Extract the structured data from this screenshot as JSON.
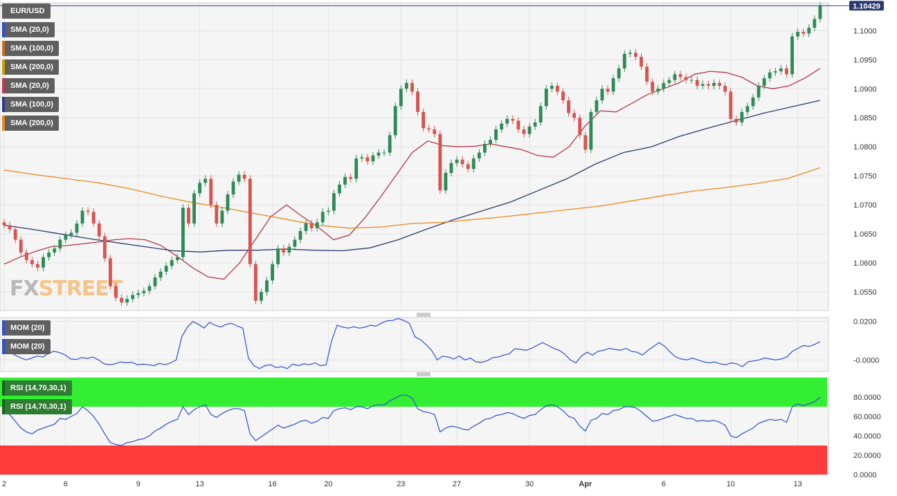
{
  "symbol": "EUR/USD",
  "last_price": "1.10429",
  "watermark": {
    "fx": "FX",
    "street": "STREET"
  },
  "legends": {
    "price": [
      {
        "label": "EUR/USD",
        "color": "#5f5f5f"
      },
      {
        "label": "SMA (20,0)",
        "color": "#2d4fd0"
      },
      {
        "label": "SMA (100,0)",
        "color": "#d2691e"
      },
      {
        "label": "SMA (200,0)",
        "color": "#c8a000"
      },
      {
        "label": "SMA (20,0)",
        "color": "#c0394b"
      },
      {
        "label": "SMA (100,0)",
        "color": "#2b3a8c"
      },
      {
        "label": "SMA (200,0)",
        "color": "#e8891f"
      }
    ],
    "mom": [
      {
        "label": "MOM (20)",
        "color": "#2d4fd0"
      },
      {
        "label": "MOM (20)",
        "color": "#2d4fd0"
      }
    ],
    "rsi": [
      {
        "label": "RSI (14,70,30,1)",
        "color": "#1b5e20"
      },
      {
        "label": "RSI (14,70,30,1)",
        "color": "#1b5e20"
      }
    ]
  },
  "colors": {
    "up": "#2e8b57",
    "down": "#d9534f",
    "sma20": "#b5364a",
    "sma100": "#2b3a6e",
    "sma200": "#e8891f",
    "mom": "#2d4fd0",
    "rsi": "#2d4fd0",
    "overbought": "#33ee33",
    "oversold": "#ff3b3b"
  },
  "chart_data": [
    {
      "type": "candlestick",
      "title": "EUR/USD",
      "x_ticks": [
        "2",
        "6",
        "9",
        "13",
        "16",
        "20",
        "23",
        "27",
        "30",
        "Apr",
        "6",
        "10",
        "13"
      ],
      "x_tick_index": [
        0,
        11,
        24,
        35,
        48,
        58,
        71,
        81,
        94,
        104,
        118,
        130,
        142
      ],
      "y_ticks": [
        "1.0550",
        "1.0600",
        "1.0650",
        "1.0700",
        "1.0750",
        "1.0800",
        "1.0850",
        "1.0900",
        "1.0950",
        "1.1000"
      ],
      "ylim": [
        1.0518,
        1.1048
      ],
      "last": 1.10429,
      "close": [
        1.0665,
        1.0658,
        1.064,
        1.0618,
        1.0605,
        1.0598,
        1.0592,
        1.061,
        1.0618,
        1.0625,
        1.064,
        1.0648,
        1.0652,
        1.0668,
        1.069,
        1.0688,
        1.0668,
        1.0646,
        1.0608,
        1.056,
        1.054,
        1.0532,
        1.0538,
        1.0545,
        1.0548,
        1.0552,
        1.056,
        1.0575,
        1.0585,
        1.0595,
        1.0605,
        1.061,
        1.0695,
        1.0668,
        1.072,
        1.0738,
        1.0745,
        1.07,
        1.0668,
        1.069,
        1.0718,
        1.074,
        1.0752,
        1.0745,
        1.0598,
        1.0535,
        1.055,
        1.057,
        1.0598,
        1.0625,
        1.0618,
        1.0628,
        1.064,
        1.0655,
        1.0668,
        1.066,
        1.067,
        1.0688,
        1.069,
        1.072,
        1.0735,
        1.0748,
        1.0745,
        1.078,
        1.0782,
        1.0775,
        1.0785,
        1.079,
        1.079,
        1.082,
        1.087,
        1.09,
        1.091,
        1.0895,
        1.086,
        1.0832,
        1.083,
        1.0822,
        1.0725,
        1.0755,
        1.0772,
        1.0778,
        1.077,
        1.0762,
        1.078,
        1.079,
        1.0805,
        1.0812,
        1.083,
        1.084,
        1.0848,
        1.0845,
        1.083,
        1.0822,
        1.0835,
        1.0842,
        1.087,
        1.09,
        1.0905,
        1.0895,
        1.088,
        1.0858,
        1.085,
        1.082,
        1.0795,
        1.086,
        1.088,
        1.09,
        1.0895,
        1.0918,
        1.0935,
        1.096,
        1.0962,
        1.0955,
        1.0938,
        1.0912,
        1.0895,
        1.09,
        1.091,
        1.0915,
        1.0925,
        1.092,
        1.0915,
        1.0915,
        1.0905,
        1.0908,
        1.0905,
        1.091,
        1.0905,
        1.0895,
        1.0848,
        1.0842,
        1.086,
        1.087,
        1.0885,
        1.0905,
        1.0918,
        1.0928,
        1.093,
        1.0935,
        1.0925,
        1.099,
        1.0998,
        1.0995,
        1.1005,
        1.102,
        1.10429
      ],
      "series": [
        {
          "name": "SMA (20,0)",
          "values": [
            1.0598,
            1.061,
            1.062,
            1.0628,
            1.063,
            1.0633,
            1.0636,
            1.064,
            1.0642,
            1.064,
            1.063,
            1.0612,
            1.0592,
            1.0576,
            1.0572,
            1.06,
            1.064,
            1.068,
            1.07,
            1.068,
            1.0662,
            1.064,
            1.0648,
            1.0678,
            1.0714,
            1.0752,
            1.079,
            1.081,
            1.0802,
            1.08,
            1.0801,
            1.0805,
            1.08,
            1.0795,
            1.0785,
            1.0782,
            1.08,
            1.0835,
            1.0862,
            1.086,
            1.0875,
            1.089,
            1.09,
            1.091,
            1.0925,
            1.093,
            1.0928,
            1.092,
            1.0905,
            1.09,
            1.0905,
            1.0918,
            1.0935
          ]
        },
        {
          "name": "SMA (100,0)",
          "values": [
            1.0665,
            1.0658,
            1.065,
            1.0642,
            1.0635,
            1.0628,
            1.0621,
            1.0619,
            1.0622,
            1.0622,
            1.0624,
            1.0622,
            1.0621,
            1.0626,
            1.064,
            1.0658,
            1.0675,
            1.069,
            1.0705,
            1.0725,
            1.0745,
            1.077,
            1.079,
            1.08,
            1.0818,
            1.0832,
            1.0845,
            1.0858,
            1.0869,
            1.088
          ]
        },
        {
          "name": "SMA (200,0)",
          "values": [
            1.076,
            1.0752,
            1.0745,
            1.0738,
            1.0728,
            1.0715,
            1.0704,
            1.0695,
            1.0685,
            1.0675,
            1.0665,
            1.066,
            1.0662,
            1.0668,
            1.067,
            1.0675,
            1.068,
            1.0686,
            1.0692,
            1.0698,
            1.0707,
            1.0716,
            1.0724,
            1.073,
            1.0737,
            1.0746,
            1.0764
          ]
        }
      ]
    },
    {
      "type": "line",
      "title": "MOM (20)",
      "y_ticks": [
        "0.0200",
        "-0.0000"
      ],
      "ylim": [
        -0.006,
        0.022
      ],
      "series": [
        {
          "name": "MOM (20)",
          "values": [
            0.005,
            0.0038,
            0.0025,
            0.001,
            0.0,
            0.001,
            0.002,
            0.0015,
            0.0035,
            0.0045,
            0.0038,
            0.0025,
            0.0005,
            0.0002,
            0.0012,
            0.0008,
            0.0015,
            0.0,
            -0.002,
            -0.0025,
            -0.002,
            -0.001,
            -0.0015,
            -0.0012,
            -0.0025,
            -0.0022,
            -0.0025,
            -0.003,
            -0.0018,
            -0.0025,
            -0.0015,
            0.0,
            0.012,
            0.017,
            0.02,
            0.0185,
            0.0165,
            0.0195,
            0.018,
            0.017,
            0.0185,
            0.019,
            0.0175,
            0.0165,
            0.001,
            -0.003,
            -0.0045,
            -0.003,
            -0.0025,
            -0.004,
            -0.0035,
            -0.0045,
            -0.0022,
            -0.003,
            -0.002,
            -0.0025,
            -0.0015,
            -0.003,
            -0.0025,
            0.01,
            0.018,
            0.017,
            0.0165,
            0.0172,
            0.0165,
            0.017,
            0.018,
            0.0175,
            0.0192,
            0.0203,
            0.0205,
            0.0215,
            0.0205,
            0.019,
            0.012,
            0.0105,
            0.008,
            0.005,
            0.0,
            0.002,
            0.0015,
            0.0005,
            0.002,
            0.0,
            0.001,
            -0.001,
            -0.0012,
            -0.0005,
            0.0012,
            0.0015,
            0.0025,
            0.0032,
            0.0058,
            0.0055,
            0.005,
            0.006,
            0.0075,
            0.009,
            0.0075,
            0.006,
            0.005,
            0.003,
            0.0,
            -0.0015,
            0.002,
            0.004,
            0.0025,
            0.0045,
            0.005,
            0.006,
            0.0055,
            0.005,
            0.006,
            0.0045,
            0.004,
            0.0025,
            0.005,
            0.007,
            0.009,
            0.007,
            0.004,
            0.0015,
            0.0005,
            0.0,
            0.001,
            0.0,
            -0.001,
            -0.0015,
            -0.001,
            -0.002,
            -0.0025,
            -0.0015,
            -0.002,
            -0.0035,
            -0.001,
            -0.0005,
            0.0,
            0.001,
            0.0005,
            0.0,
            0.0005,
            0.0015,
            0.0045,
            0.006,
            0.0075,
            0.007,
            0.008,
            0.0095
          ]
        }
      ]
    },
    {
      "type": "line",
      "title": "RSI (14,70,30,1)",
      "y_ticks": [
        "80.0000",
        "60.0000",
        "40.0000",
        "20.0000",
        "0.0000"
      ],
      "ylim": [
        0,
        100
      ],
      "bands": {
        "overbought": [
          70,
          100
        ],
        "oversold": [
          0,
          30
        ]
      },
      "series": [
        {
          "name": "RSI (14,70,30,1)",
          "values": [
            66,
            62,
            55,
            48,
            44,
            42,
            46,
            48,
            50,
            52,
            58,
            57,
            60,
            63,
            70,
            66,
            60,
            52,
            42,
            33,
            31,
            30,
            33,
            34,
            36,
            37,
            40,
            45,
            48,
            52,
            55,
            57,
            70,
            62,
            67,
            70,
            72,
            62,
            59,
            63,
            66,
            68,
            68,
            66,
            42,
            35,
            39,
            43,
            47,
            51,
            48,
            50,
            52,
            55,
            56,
            53,
            55,
            59,
            58,
            66,
            68,
            69,
            67,
            70,
            70,
            68,
            71,
            72,
            72,
            76,
            79,
            82,
            82,
            79,
            68,
            65,
            64,
            62,
            44,
            48,
            50,
            49,
            47,
            46,
            50,
            53,
            57,
            58,
            61,
            62,
            64,
            63,
            60,
            58,
            61,
            62,
            67,
            71,
            72,
            70,
            66,
            60,
            58,
            50,
            45,
            56,
            58,
            63,
            62,
            66,
            67,
            70,
            70,
            69,
            65,
            60,
            55,
            56,
            58,
            60,
            62,
            60,
            58,
            58,
            55,
            56,
            55,
            56,
            54,
            51,
            40,
            38,
            42,
            45,
            48,
            53,
            55,
            57,
            56,
            57,
            54,
            70,
            73,
            71,
            73,
            75,
            80
          ]
        }
      ]
    }
  ]
}
